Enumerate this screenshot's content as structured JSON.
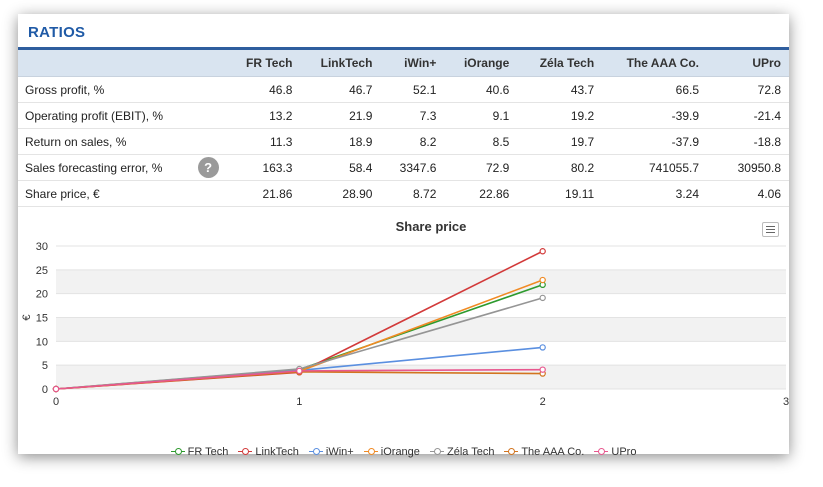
{
  "header": {
    "title": "RATIOS"
  },
  "table": {
    "columns": [
      "FR Tech",
      "LinkTech",
      "iWin+",
      "iOrange",
      "Zéla Tech",
      "The AAA Co.",
      "UPro"
    ],
    "rows": [
      {
        "label": "Gross profit, %",
        "values": [
          "46.8",
          "46.7",
          "52.1",
          "40.6",
          "43.7",
          "66.5",
          "72.8"
        ]
      },
      {
        "label": "Operating profit (EBIT), %",
        "values": [
          "13.2",
          "21.9",
          "7.3",
          "9.1",
          "19.2",
          "-39.9",
          "-21.4"
        ]
      },
      {
        "label": "Return on sales, %",
        "values": [
          "11.3",
          "18.9",
          "8.2",
          "8.5",
          "19.7",
          "-37.9",
          "-18.8"
        ]
      },
      {
        "label": "Sales forecasting error, %",
        "help": "?",
        "values": [
          "163.3",
          "58.4",
          "3347.6",
          "72.9",
          "80.2",
          "741055.7",
          "30950.8"
        ]
      },
      {
        "label": "Share price, €",
        "values": [
          "21.86",
          "28.90",
          "8.72",
          "22.86",
          "19.11",
          "3.24",
          "4.06"
        ]
      }
    ]
  },
  "chart_data": {
    "type": "line",
    "title": "Share price",
    "ylabel": "€",
    "xlabel": "",
    "x": [
      0,
      1,
      2
    ],
    "xlim": [
      0,
      3
    ],
    "ylim": [
      0,
      30
    ],
    "xticks": [
      "0",
      "1",
      "2",
      "3"
    ],
    "yticks": [
      "0",
      "5",
      "10",
      "15",
      "20",
      "25",
      "30"
    ],
    "grid": true,
    "legend": "bottom",
    "series": [
      {
        "name": "FR Tech",
        "color": "#2e9a2e",
        "values": [
          0,
          4.1,
          21.86
        ]
      },
      {
        "name": "LinkTech",
        "color": "#d23a3a",
        "values": [
          0,
          3.5,
          28.9
        ]
      },
      {
        "name": "iWin+",
        "color": "#5a8fe0",
        "values": [
          0,
          3.9,
          8.72
        ]
      },
      {
        "name": "iOrange",
        "color": "#f08a24",
        "values": [
          0,
          3.7,
          22.86
        ]
      },
      {
        "name": "Zéla Tech",
        "color": "#959595",
        "values": [
          0,
          4.2,
          19.11
        ]
      },
      {
        "name": "The AAA Co.",
        "color": "#d2741f",
        "values": [
          0,
          3.6,
          3.24
        ]
      },
      {
        "name": "UPro",
        "color": "#e8578e",
        "values": [
          0,
          3.8,
          4.06
        ]
      }
    ]
  },
  "chart_menu_icon": "hamburger-menu-icon"
}
